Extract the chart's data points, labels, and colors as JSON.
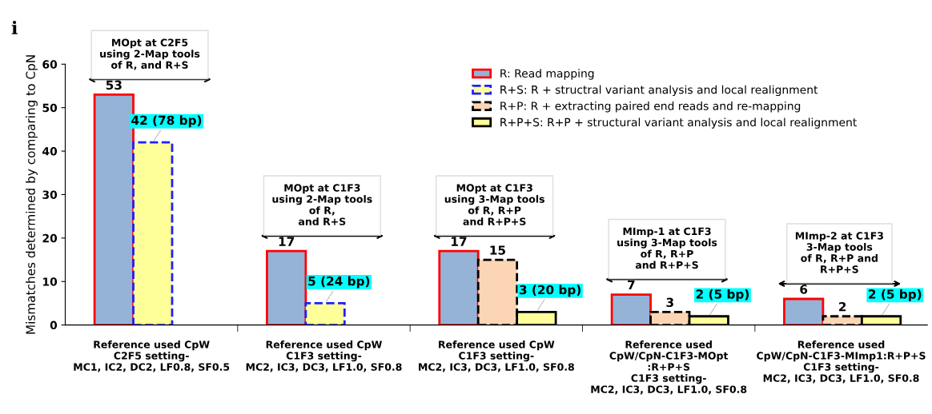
{
  "chart_data": {
    "type": "bar",
    "ylabel": "Mismatches determined by comparing to CpN",
    "categories": [
      "Reference used CpW\nC2F5 setting-\nMC1, IC2, DC2, LF0.8, SF0.5",
      "Reference used CpW\nC1F3 setting-\nMC2, IC3, DC3, LF1.0, SF0.8",
      "Reference used CpW\nC1F3 setting-\nMC2, IC3, DC3, LF1.0, SF0.8",
      "Reference used\nCpW/CpN-C1F3-MOpt\n:R+P+S\nC1F3 setting-\nMC2, IC3, DC3, LF1.0, SF0.8",
      "Reference used\nCpW/CpN-C1F3-MImp1:R+P+S\nC1F3 setting-\nMC2, IC3, DC3, LF1.0, SF0.8"
    ],
    "series": [
      {
        "name": "R: Read mapping",
        "color": "#95b3d7",
        "values": [
          53,
          17,
          17,
          7,
          6
        ],
        "value_labels": [
          "53",
          "17",
          "17",
          "7",
          "6"
        ]
      },
      {
        "name": "R+S: R + structral variant analysis and local realignment",
        "color": "#ffff99",
        "line_style": "dashed",
        "values": [
          42,
          5,
          null,
          null,
          null
        ],
        "value_labels": [
          "42 (78 bp)",
          "5 (24 bp)",
          null,
          null,
          null
        ]
      },
      {
        "name": "R+P: R + extracting paired end reads and re-mapping",
        "color": "#fcd5b4",
        "line_style": "dashed",
        "values": [
          null,
          null,
          15,
          3,
          2
        ],
        "value_labels": [
          null,
          null,
          "15",
          "3",
          "2"
        ]
      },
      {
        "name": "R+P+S: R+P + structural variant analysis and local realignment",
        "color": "#ffff99",
        "values": [
          null,
          null,
          3,
          2,
          2
        ],
        "value_labels": [
          null,
          null,
          "3 (20 bp)",
          "2 (5 bp)",
          "2 (5 bp)"
        ]
      }
    ],
    "ylim": [
      0,
      60
    ],
    "yticks": [
      0,
      10,
      20,
      30,
      40,
      50,
      60
    ],
    "grid": false,
    "legend": "top right",
    "annotations": [
      "i",
      "MOpt at C2F5\nusing 2-Map tools\nof R, and R+S",
      "MOpt at C1F3\nusing 2-Map tools\nof R,\nand R+S",
      "MOpt at C1F3\nusing 3-Map tools\nof R, R+P\nand R+P+S",
      "MImp-1 at C1F3\nusing 3-Map tools\nof R, R+P\nand R+P+S",
      "MImp-2 at C1F3\n3-Map tools\nof R, R+P and\nR+P+S"
    ]
  }
}
